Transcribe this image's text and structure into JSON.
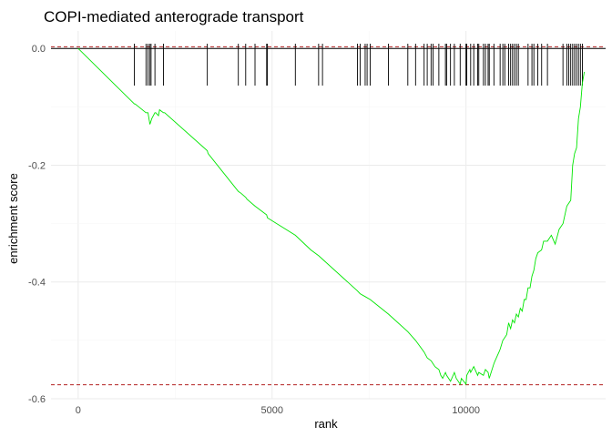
{
  "chart_data": {
    "type": "line",
    "title": "COPI-mediated anterograde transport",
    "xlabel": "rank",
    "ylabel": "enrichment score",
    "xlim": [
      -700,
      13600
    ],
    "ylim": [
      -0.6,
      0.03
    ],
    "x_ticks": [
      0,
      5000,
      10000
    ],
    "x_tick_labels": [
      "0",
      "5000",
      "10000"
    ],
    "y_ticks": [
      0.0,
      -0.2,
      -0.4,
      -0.6
    ],
    "y_tick_labels": [
      "0.0",
      "-0.2",
      "-0.4",
      "-0.6"
    ],
    "grid": true,
    "hline_max_es": 0.003,
    "hline_min_es": -0.576,
    "series": [
      {
        "name": "",
        "color": "#00e600",
        "x": [
          0,
          1450,
          1470,
          1750,
          1800,
          1850,
          1900,
          1980,
          2000,
          2070,
          2100,
          2200,
          2230,
          3330,
          3350,
          4130,
          4200,
          4320,
          4350,
          4560,
          4860,
          4880,
          5600,
          6000,
          6200,
          7200,
          7270,
          7400,
          7530,
          8000,
          8500,
          8700,
          8920,
          9000,
          9100,
          9150,
          9200,
          9300,
          9350,
          9400,
          9470,
          9500,
          9600,
          9700,
          9750,
          9850,
          9880,
          10000,
          10020,
          10100,
          10120,
          10200,
          10300,
          10330,
          10450,
          10500,
          10570,
          10600,
          10720,
          10750,
          10850,
          10880,
          10950,
          11000,
          11050,
          11100,
          11150,
          11200,
          11250,
          11300,
          11350,
          11400,
          11450,
          11500,
          11550,
          11600,
          11650,
          11700,
          11750,
          11800,
          11850,
          11950,
          12000,
          12100,
          12200,
          12300,
          12400,
          12500,
          12600,
          12650,
          12700,
          12750,
          12800,
          12850,
          12900,
          12950,
          13000,
          13050
        ],
        "y": [
          0.0,
          -0.095,
          -0.095,
          -0.11,
          -0.11,
          -0.13,
          -0.12,
          -0.11,
          -0.11,
          -0.115,
          -0.105,
          -0.11,
          -0.11,
          -0.175,
          -0.18,
          -0.245,
          -0.248,
          -0.255,
          -0.258,
          -0.27,
          -0.285,
          -0.29,
          -0.32,
          -0.345,
          -0.355,
          -0.415,
          -0.42,
          -0.425,
          -0.43,
          -0.455,
          -0.485,
          -0.5,
          -0.52,
          -0.53,
          -0.535,
          -0.54,
          -0.545,
          -0.55,
          -0.56,
          -0.565,
          -0.555,
          -0.56,
          -0.57,
          -0.555,
          -0.565,
          -0.575,
          -0.565,
          -0.575,
          -0.56,
          -0.55,
          -0.555,
          -0.545,
          -0.56,
          -0.555,
          -0.56,
          -0.55,
          -0.555,
          -0.565,
          -0.54,
          -0.535,
          -0.52,
          -0.515,
          -0.5,
          -0.495,
          -0.49,
          -0.47,
          -0.48,
          -0.465,
          -0.47,
          -0.455,
          -0.46,
          -0.445,
          -0.45,
          -0.43,
          -0.43,
          -0.41,
          -0.41,
          -0.39,
          -0.38,
          -0.36,
          -0.35,
          -0.345,
          -0.33,
          -0.33,
          -0.32,
          -0.335,
          -0.31,
          -0.3,
          -0.27,
          -0.265,
          -0.26,
          -0.2,
          -0.18,
          -0.17,
          -0.12,
          -0.1,
          -0.06,
          -0.04
        ]
      }
    ],
    "gene_hits": [
      1450,
      1750,
      1800,
      1850,
      1880,
      1980,
      2200,
      3330,
      4130,
      4320,
      4560,
      4860,
      4880,
      5600,
      6200,
      6300,
      7200,
      7270,
      7400,
      7450,
      7530,
      8000,
      8500,
      8700,
      8920,
      9000,
      9100,
      9150,
      9300,
      9470,
      9500,
      9600,
      9700,
      9850,
      10000,
      10020,
      10120,
      10200,
      10300,
      10330,
      10450,
      10500,
      10570,
      10600,
      10720,
      10880,
      10950,
      11000,
      11100,
      11150,
      11200,
      11250,
      11300,
      11350,
      11600,
      11700,
      11750,
      11850,
      11950,
      12100,
      12500,
      12600,
      12650,
      12700,
      12750,
      12800,
      12850,
      12900,
      12950,
      13000
    ]
  }
}
